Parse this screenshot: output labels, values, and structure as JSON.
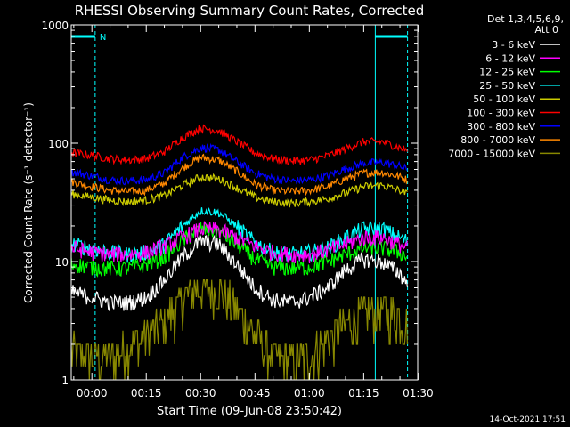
{
  "chart_data": {
    "type": "line",
    "title": "RHESSI Observing Summary Count Rates, Corrected",
    "xlabel": "Start Time (09-Jun-08 23:50:42)",
    "ylabel": "Corrected Count Rate (s⁻¹ detector⁻¹)",
    "yscale": "log",
    "ylim": [
      1,
      1000
    ],
    "xlim_minutes": [
      -5.7,
      89.9
    ],
    "x_tick_minutes": [
      0,
      15,
      30,
      45,
      60,
      75,
      90
    ],
    "x_tick_labels": [
      "00:00",
      "00:15",
      "00:30",
      "00:45",
      "01:00",
      "01:15",
      "01:30"
    ],
    "y_tick_values": [
      1,
      10,
      100,
      1000
    ],
    "y_tick_labels": [
      "1",
      "10",
      "100",
      "1000"
    ],
    "legend_title": [
      "Det 1,3,4,5,6,9,",
      "Att 0"
    ],
    "legend_position": "right",
    "footer_date": "14-Oct-2021 17:51",
    "markers": {
      "night_boundaries_minutes": [
        -5.7,
        0.9,
        78.2,
        87.1
      ],
      "saa_label": "N",
      "saa_bars_minutes": [
        [
          -5.7,
          0.9
        ],
        [
          78.2,
          87.1
        ]
      ],
      "line_color": "#00ffff"
    },
    "series": [
      {
        "name": "3 - 6 keV",
        "color": "#ffffff",
        "x": [
          -5,
          0,
          5,
          10,
          15,
          20,
          25,
          30,
          35,
          40,
          45,
          50,
          55,
          60,
          65,
          70,
          75,
          80,
          85,
          87
        ],
        "y": [
          5.5,
          5,
          4.5,
          4.5,
          5,
          7,
          11,
          15,
          14,
          9.5,
          6,
          4.8,
          4.5,
          5,
          6,
          8.5,
          10.5,
          10,
          8,
          6.5
        ]
      },
      {
        "name": "6 - 12 keV",
        "color": "#ff00ff",
        "x": [
          -5,
          0,
          5,
          10,
          15,
          20,
          25,
          30,
          35,
          40,
          45,
          50,
          55,
          60,
          65,
          70,
          75,
          80,
          85,
          87
        ],
        "y": [
          13,
          12,
          11.5,
          11.5,
          12,
          13.5,
          16,
          19,
          18.5,
          16,
          13.5,
          12,
          11.5,
          11.5,
          12.5,
          14,
          16,
          16,
          14,
          13
        ]
      },
      {
        "name": "12 - 25 keV",
        "color": "#00ff00",
        "x": [
          -5,
          0,
          5,
          10,
          15,
          20,
          25,
          30,
          35,
          40,
          45,
          50,
          55,
          60,
          65,
          70,
          75,
          80,
          85,
          87
        ],
        "y": [
          9.5,
          9,
          8.8,
          8.8,
          9.5,
          11,
          15,
          19,
          18,
          14,
          10.5,
          9,
          8.8,
          9,
          10,
          11.5,
          13,
          13,
          12,
          11
        ]
      },
      {
        "name": "25 - 50 keV",
        "color": "#00ffff",
        "x": [
          -5,
          0,
          5,
          10,
          15,
          20,
          25,
          30,
          35,
          40,
          45,
          50,
          55,
          60,
          65,
          70,
          75,
          80,
          85,
          87
        ],
        "y": [
          14,
          13,
          12,
          11.5,
          12,
          14,
          20,
          27,
          26,
          20,
          14.5,
          12,
          11.5,
          12,
          13,
          16,
          19,
          19,
          16,
          15
        ]
      },
      {
        "name": "50 - 100 keV",
        "color": "#cccc00",
        "x": [
          -5,
          0,
          5,
          10,
          15,
          20,
          25,
          30,
          35,
          40,
          45,
          50,
          55,
          60,
          65,
          70,
          75,
          80,
          85,
          87
        ],
        "y": [
          37,
          35,
          33,
          32,
          33,
          36,
          44,
          52,
          50,
          42,
          35,
          32,
          31,
          32,
          34,
          38,
          43,
          44,
          40,
          37
        ]
      },
      {
        "name": "100 - 300 keV",
        "color": "#ff0000",
        "x": [
          -5,
          0,
          5,
          10,
          15,
          20,
          25,
          30,
          35,
          40,
          45,
          50,
          55,
          60,
          65,
          70,
          75,
          80,
          85,
          87
        ],
        "y": [
          83,
          79,
          74,
          72,
          74,
          85,
          112,
          134,
          128,
          103,
          83,
          74,
          71,
          72,
          78,
          90,
          103,
          103,
          92,
          87
        ]
      },
      {
        "name": "300 - 800 keV",
        "color": "#0000ff",
        "x": [
          -5,
          0,
          5,
          10,
          15,
          20,
          25,
          30,
          35,
          40,
          45,
          50,
          55,
          60,
          65,
          70,
          75,
          80,
          85,
          87
        ],
        "y": [
          57,
          53,
          49,
          48,
          49,
          56,
          76,
          92,
          88,
          70,
          56,
          50,
          48,
          49,
          53,
          61,
          68,
          69,
          64,
          60
        ]
      },
      {
        "name": "800 - 7000 keV",
        "color": "#ff8800",
        "x": [
          -5,
          0,
          5,
          10,
          15,
          20,
          25,
          30,
          35,
          40,
          45,
          50,
          55,
          60,
          65,
          70,
          75,
          80,
          85,
          87
        ],
        "y": [
          47,
          43,
          40,
          39,
          40,
          46,
          62,
          76,
          72,
          58,
          45,
          40,
          39,
          40,
          43,
          50,
          56,
          57,
          52,
          49
        ]
      },
      {
        "name": "7000 - 15000 keV",
        "color": "#888800",
        "x": [
          -5,
          0,
          5,
          10,
          15,
          20,
          25,
          30,
          35,
          40,
          45,
          50,
          55,
          60,
          65,
          70,
          75,
          80,
          85,
          87
        ],
        "y": [
          1.6,
          1.5,
          1.5,
          1.8,
          2.3,
          3,
          4.5,
          6,
          5.5,
          3.8,
          2.3,
          1.5,
          1.4,
          1.5,
          2,
          2.8,
          3.5,
          3.7,
          3.2,
          2.8
        ]
      }
    ]
  }
}
